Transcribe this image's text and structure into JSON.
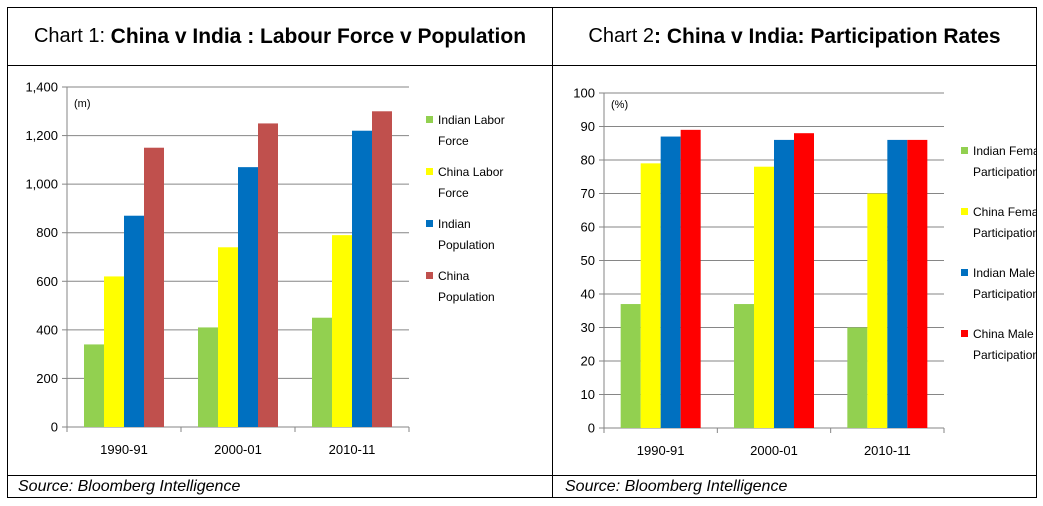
{
  "chart_data": [
    {
      "type": "bar",
      "title_prefix": "Chart 1:",
      "title": "China v India : Labour Force v Population",
      "unit_label": "(m)",
      "categories": [
        "1990-91",
        "2000-01",
        "2010-11"
      ],
      "ylim": [
        0,
        1400
      ],
      "ytick_step": 200,
      "ytick_labels": [
        "0",
        "200",
        "400",
        "600",
        "800",
        "1,000",
        "1,200",
        "1,400"
      ],
      "series": [
        {
          "name": "Indian Labor Force",
          "legend_lines": [
            "Indian Labor",
            "Force"
          ],
          "color": "#92d050",
          "values": [
            340,
            410,
            450
          ]
        },
        {
          "name": "China Labor Force",
          "legend_lines": [
            "China Labor",
            "Force"
          ],
          "color": "#ffff00",
          "values": [
            620,
            740,
            790
          ]
        },
        {
          "name": "Indian Population",
          "legend_lines": [
            "Indian",
            "Population"
          ],
          "color": "#0070c0",
          "values": [
            870,
            1070,
            1220
          ]
        },
        {
          "name": "China Population",
          "legend_lines": [
            "China",
            "Population"
          ],
          "color": "#c0504d",
          "values": [
            1150,
            1250,
            1300
          ]
        }
      ],
      "source": "Source: Bloomberg Intelligence"
    },
    {
      "type": "bar",
      "title_prefix": "Chart 2",
      "title": ": China v India: Participation Rates",
      "unit_label": "(%)",
      "categories": [
        "1990-91",
        "2000-01",
        "2010-11"
      ],
      "ylim": [
        0,
        100
      ],
      "ytick_step": 10,
      "ytick_labels": [
        "0",
        "10",
        "20",
        "30",
        "40",
        "50",
        "60",
        "70",
        "80",
        "90",
        "100"
      ],
      "series": [
        {
          "name": "Indian Female Participation",
          "legend_lines": [
            "Indian Female",
            "Participation"
          ],
          "color": "#92d050",
          "values": [
            37,
            37,
            30
          ]
        },
        {
          "name": "China Female Participation",
          "legend_lines": [
            "China Female",
            "Participation"
          ],
          "color": "#ffff00",
          "values": [
            79,
            78,
            70
          ]
        },
        {
          "name": "Indian Male Participation",
          "legend_lines": [
            "Indian Male",
            "Participation"
          ],
          "color": "#0070c0",
          "values": [
            87,
            86,
            86
          ]
        },
        {
          "name": "China Male Participation",
          "legend_lines": [
            "China Male",
            "Participation"
          ],
          "color": "#ff0000",
          "values": [
            89,
            88,
            86
          ]
        }
      ],
      "source": "Source: Bloomberg Intelligence"
    }
  ]
}
